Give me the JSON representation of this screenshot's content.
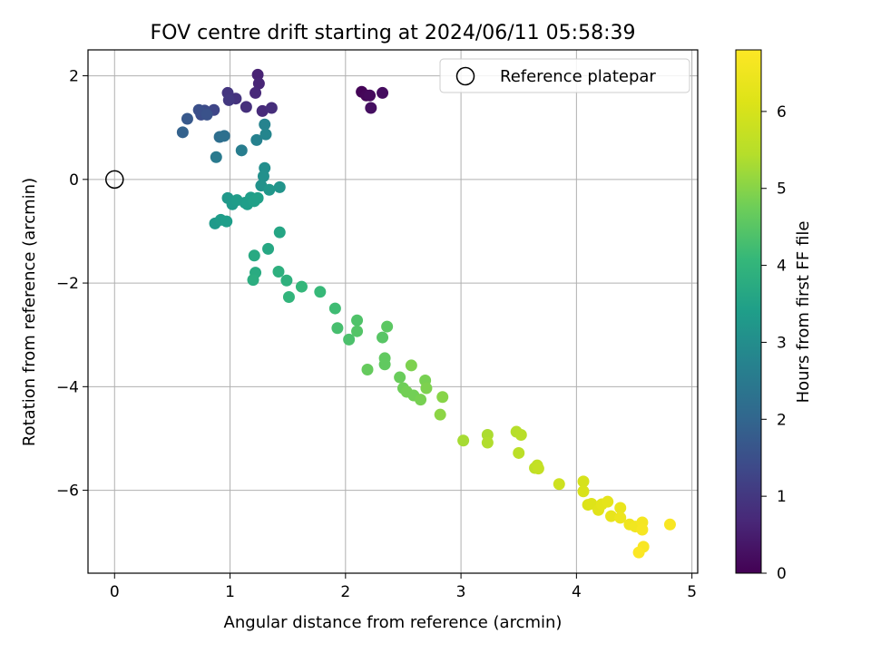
{
  "chart_data": {
    "type": "scatter",
    "title": "FOV centre drift starting at 2024/06/11 05:58:39",
    "xlabel": "Angular distance from reference (arcmin)",
    "ylabel": "Rotation from reference (arcmin)",
    "xlim": [
      -0.23,
      5.05
    ],
    "ylim": [
      -7.6,
      2.5
    ],
    "xticks": [
      "0",
      "1",
      "2",
      "3",
      "4",
      "5"
    ],
    "yticks": [
      "−6",
      "−4",
      "−2",
      "0",
      "2"
    ],
    "xtick_values": [
      0,
      1,
      2,
      3,
      4,
      5
    ],
    "ytick_values": [
      -6,
      -4,
      -2,
      0,
      2
    ],
    "grid": true,
    "legend": {
      "placement": "top-right",
      "label": "Reference platepar"
    },
    "reference_point": {
      "x": 0,
      "y": 0
    },
    "colorbar": {
      "label": "Hours from first FF file",
      "range": [
        0,
        6.8
      ],
      "ticks": [
        "0",
        "1",
        "2",
        "3",
        "4",
        "5",
        "6"
      ],
      "tick_values": [
        0,
        1,
        2,
        3,
        4,
        5,
        6
      ],
      "colormap": "viridis"
    },
    "points": [
      {
        "x": 2.14,
        "y": 1.69,
        "h": 0.05
      },
      {
        "x": 2.18,
        "y": 1.62,
        "h": 0.1
      },
      {
        "x": 2.21,
        "y": 1.62,
        "h": 0.15
      },
      {
        "x": 2.32,
        "y": 1.67,
        "h": 0.2
      },
      {
        "x": 2.22,
        "y": 1.38,
        "h": 0.25
      },
      {
        "x": 1.24,
        "y": 2.02,
        "h": 0.6
      },
      {
        "x": 1.25,
        "y": 1.85,
        "h": 0.65
      },
      {
        "x": 1.22,
        "y": 1.67,
        "h": 0.7
      },
      {
        "x": 1.28,
        "y": 1.32,
        "h": 0.75
      },
      {
        "x": 1.36,
        "y": 1.38,
        "h": 0.8
      },
      {
        "x": 1.14,
        "y": 1.4,
        "h": 0.85
      },
      {
        "x": 1.05,
        "y": 1.56,
        "h": 0.9
      },
      {
        "x": 0.98,
        "y": 1.67,
        "h": 0.95
      },
      {
        "x": 0.99,
        "y": 1.53,
        "h": 1.0
      },
      {
        "x": 0.86,
        "y": 1.34,
        "h": 1.3
      },
      {
        "x": 0.78,
        "y": 1.33,
        "h": 1.4
      },
      {
        "x": 0.75,
        "y": 1.25,
        "h": 1.45
      },
      {
        "x": 0.73,
        "y": 1.34,
        "h": 1.5
      },
      {
        "x": 0.8,
        "y": 1.25,
        "h": 1.55
      },
      {
        "x": 0.63,
        "y": 1.17,
        "h": 1.7
      },
      {
        "x": 0.59,
        "y": 0.91,
        "h": 1.9
      },
      {
        "x": 0.91,
        "y": 0.82,
        "h": 2.2
      },
      {
        "x": 0.95,
        "y": 0.84,
        "h": 2.25
      },
      {
        "x": 0.88,
        "y": 0.43,
        "h": 2.5
      },
      {
        "x": 1.1,
        "y": 0.56,
        "h": 2.6
      },
      {
        "x": 1.23,
        "y": 0.76,
        "h": 2.7
      },
      {
        "x": 1.3,
        "y": 1.06,
        "h": 2.75
      },
      {
        "x": 1.31,
        "y": 0.87,
        "h": 2.8
      },
      {
        "x": 1.3,
        "y": 0.22,
        "h": 3.0
      },
      {
        "x": 1.29,
        "y": 0.06,
        "h": 3.05
      },
      {
        "x": 1.27,
        "y": -0.12,
        "h": 3.1
      },
      {
        "x": 1.43,
        "y": -0.15,
        "h": 3.15
      },
      {
        "x": 1.34,
        "y": -0.2,
        "h": 3.2
      },
      {
        "x": 0.98,
        "y": -0.36,
        "h": 3.25
      },
      {
        "x": 1.02,
        "y": -0.48,
        "h": 3.3
      },
      {
        "x": 1.06,
        "y": -0.4,
        "h": 3.35
      },
      {
        "x": 1.13,
        "y": -0.45,
        "h": 3.35
      },
      {
        "x": 1.18,
        "y": -0.35,
        "h": 3.4
      },
      {
        "x": 1.15,
        "y": -0.48,
        "h": 3.4
      },
      {
        "x": 1.21,
        "y": -0.42,
        "h": 3.45
      },
      {
        "x": 1.24,
        "y": -0.36,
        "h": 3.45
      },
      {
        "x": 0.87,
        "y": -0.85,
        "h": 3.3
      },
      {
        "x": 0.92,
        "y": -0.78,
        "h": 3.35
      },
      {
        "x": 0.97,
        "y": -0.81,
        "h": 3.4
      },
      {
        "x": 1.43,
        "y": -1.02,
        "h": 3.6
      },
      {
        "x": 1.33,
        "y": -1.34,
        "h": 3.65
      },
      {
        "x": 1.21,
        "y": -1.47,
        "h": 3.7
      },
      {
        "x": 1.22,
        "y": -1.8,
        "h": 3.75
      },
      {
        "x": 1.2,
        "y": -1.94,
        "h": 3.8
      },
      {
        "x": 1.42,
        "y": -1.78,
        "h": 3.85
      },
      {
        "x": 1.49,
        "y": -1.95,
        "h": 3.9
      },
      {
        "x": 1.51,
        "y": -2.27,
        "h": 4.0
      },
      {
        "x": 1.62,
        "y": -2.07,
        "h": 4.05
      },
      {
        "x": 1.78,
        "y": -2.17,
        "h": 4.1
      },
      {
        "x": 1.91,
        "y": -2.49,
        "h": 4.2
      },
      {
        "x": 1.93,
        "y": -2.87,
        "h": 4.3
      },
      {
        "x": 2.03,
        "y": -3.09,
        "h": 4.35
      },
      {
        "x": 2.1,
        "y": -2.72,
        "h": 4.4
      },
      {
        "x": 2.1,
        "y": -2.93,
        "h": 4.45
      },
      {
        "x": 2.32,
        "y": -3.05,
        "h": 4.5
      },
      {
        "x": 2.36,
        "y": -2.84,
        "h": 4.55
      },
      {
        "x": 2.34,
        "y": -3.45,
        "h": 4.6
      },
      {
        "x": 2.34,
        "y": -3.57,
        "h": 4.6
      },
      {
        "x": 2.19,
        "y": -3.67,
        "h": 4.65
      },
      {
        "x": 2.47,
        "y": -3.82,
        "h": 4.7
      },
      {
        "x": 2.5,
        "y": -4.03,
        "h": 4.75
      },
      {
        "x": 2.53,
        "y": -4.1,
        "h": 4.8
      },
      {
        "x": 2.59,
        "y": -4.17,
        "h": 4.8
      },
      {
        "x": 2.65,
        "y": -4.25,
        "h": 4.85
      },
      {
        "x": 2.69,
        "y": -3.88,
        "h": 4.85
      },
      {
        "x": 2.7,
        "y": -4.03,
        "h": 4.9
      },
      {
        "x": 2.57,
        "y": -3.59,
        "h": 4.9
      },
      {
        "x": 2.84,
        "y": -4.2,
        "h": 5.0
      },
      {
        "x": 2.82,
        "y": -4.54,
        "h": 5.05
      },
      {
        "x": 3.02,
        "y": -5.04,
        "h": 5.3
      },
      {
        "x": 3.23,
        "y": -4.93,
        "h": 5.35
      },
      {
        "x": 3.23,
        "y": -5.08,
        "h": 5.4
      },
      {
        "x": 3.48,
        "y": -4.87,
        "h": 5.45
      },
      {
        "x": 3.52,
        "y": -4.93,
        "h": 5.5
      },
      {
        "x": 3.5,
        "y": -5.28,
        "h": 5.55
      },
      {
        "x": 3.64,
        "y": -5.57,
        "h": 5.6
      },
      {
        "x": 3.66,
        "y": -5.52,
        "h": 5.65
      },
      {
        "x": 3.67,
        "y": -5.58,
        "h": 5.7
      },
      {
        "x": 3.85,
        "y": -5.88,
        "h": 5.85
      },
      {
        "x": 4.06,
        "y": -5.83,
        "h": 6.0
      },
      {
        "x": 4.06,
        "y": -6.02,
        "h": 6.05
      },
      {
        "x": 4.1,
        "y": -6.28,
        "h": 6.1
      },
      {
        "x": 4.13,
        "y": -6.26,
        "h": 6.15
      },
      {
        "x": 4.19,
        "y": -6.38,
        "h": 6.2
      },
      {
        "x": 4.22,
        "y": -6.27,
        "h": 6.25
      },
      {
        "x": 4.27,
        "y": -6.22,
        "h": 6.3
      },
      {
        "x": 4.3,
        "y": -6.5,
        "h": 6.35
      },
      {
        "x": 4.38,
        "y": -6.34,
        "h": 6.4
      },
      {
        "x": 4.38,
        "y": -6.53,
        "h": 6.45
      },
      {
        "x": 4.46,
        "y": -6.66,
        "h": 6.5
      },
      {
        "x": 4.51,
        "y": -6.7,
        "h": 6.55
      },
      {
        "x": 4.57,
        "y": -6.62,
        "h": 6.6
      },
      {
        "x": 4.57,
        "y": -6.76,
        "h": 6.65
      },
      {
        "x": 4.81,
        "y": -6.66,
        "h": 6.7
      },
      {
        "x": 4.58,
        "y": -7.09,
        "h": 6.7
      },
      {
        "x": 4.54,
        "y": -7.2,
        "h": 6.75
      }
    ]
  }
}
